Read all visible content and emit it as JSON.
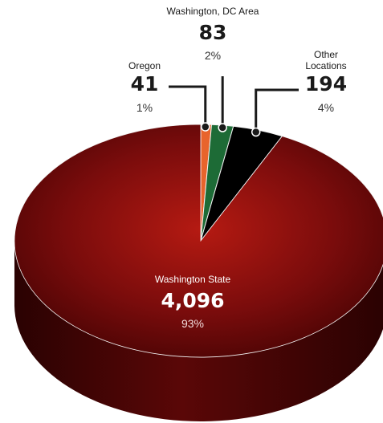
{
  "chart_data": {
    "type": "pie",
    "title": "",
    "slices": [
      {
        "label": "Washington State",
        "value": 4096,
        "value_label": "4,096",
        "percent": "93%",
        "color": "#8c0e0e"
      },
      {
        "label": "Oregon",
        "value": 41,
        "value_label": "41",
        "percent": "1%",
        "color": "#e8642c"
      },
      {
        "label": "Washington, DC Area",
        "value": 83,
        "value_label": "83",
        "percent": "2%",
        "color": "#1d6b36"
      },
      {
        "label": "Other Locations",
        "value": 194,
        "value_label": "194",
        "percent": "4%",
        "color": "#000000"
      }
    ],
    "style": "3d"
  }
}
